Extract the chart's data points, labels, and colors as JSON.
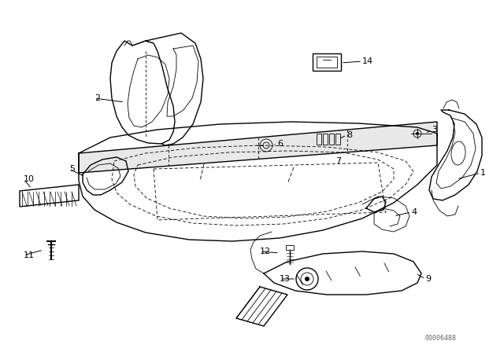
{
  "background_color": "#ffffff",
  "line_color": "#000000",
  "text_color": "#000000",
  "watermark": "00006488",
  "lw_main": 1.0,
  "lw_thin": 0.6,
  "lw_thick": 1.4
}
